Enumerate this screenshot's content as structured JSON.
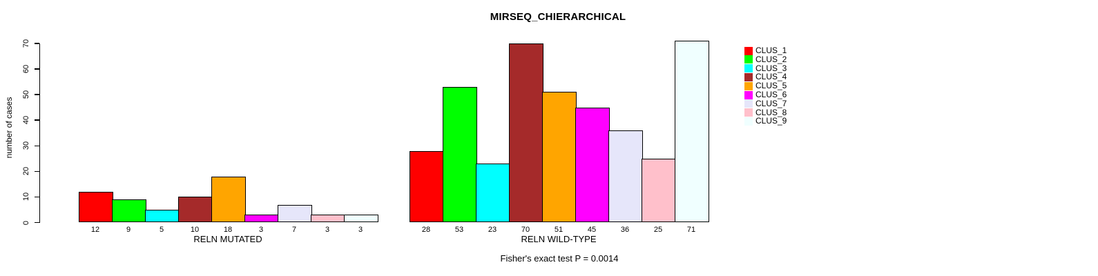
{
  "chart_data": {
    "type": "bar",
    "title": "MIRSEQ_CHIERARCHICAL",
    "ylabel": "number of cases",
    "annotation": "Fisher's exact test P = 0.0014",
    "categories": [
      "RELN MUTATED",
      "RELN WILD-TYPE"
    ],
    "groups": [
      {
        "label": "RELN MUTATED",
        "values": [
          12,
          9,
          5,
          10,
          18,
          3,
          7,
          3,
          3
        ]
      },
      {
        "label": "RELN WILD-TYPE",
        "values": [
          28,
          53,
          23,
          70,
          51,
          45,
          36,
          25,
          71
        ]
      }
    ],
    "series_names": [
      "CLUS_1",
      "CLUS_2",
      "CLUS_3",
      "CLUS_4",
      "CLUS_5",
      "CLUS_6",
      "CLUS_7",
      "CLUS_8",
      "CLUS_9"
    ],
    "colors": [
      "#FF0000",
      "#00FF00",
      "#00FFFF",
      "#A52A2A",
      "#FFA500",
      "#FF00FF",
      "#E6E6FA",
      "#FFC0CB",
      "#F0FFFF"
    ],
    "y_ticks": [
      0,
      10,
      20,
      30,
      40,
      50,
      60,
      70
    ],
    "ylim": [
      0,
      70
    ],
    "bar_value_labels_shown": true,
    "grid": false,
    "legend_position": "right-outside",
    "axis_color": "#000000",
    "bar_border_color": "#000000"
  }
}
